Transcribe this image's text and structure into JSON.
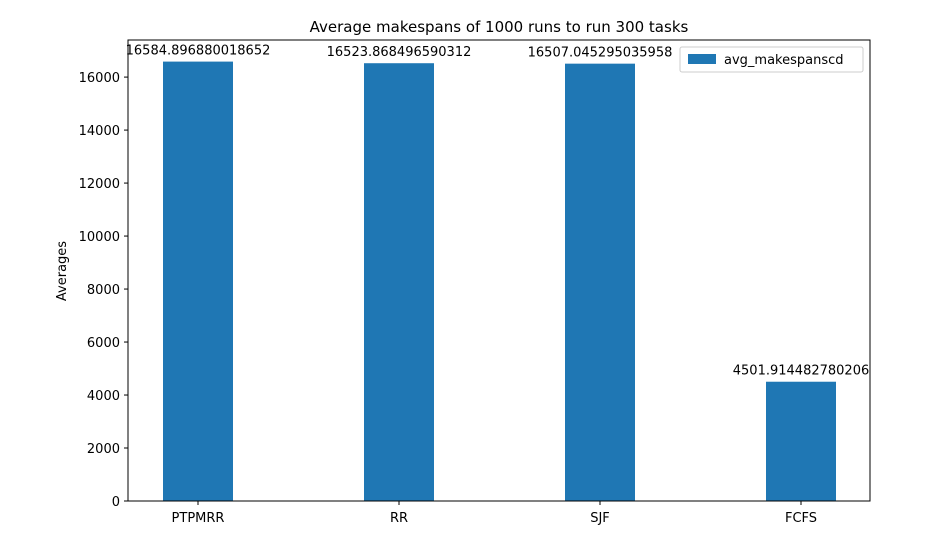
{
  "chart_data": {
    "type": "bar",
    "title": "Average makespans of 1000 runs to run 300 tasks",
    "xlabel": "",
    "ylabel": "Averages",
    "categories": [
      "PTPMRR",
      "RR",
      "SJF",
      "FCFS"
    ],
    "series": [
      {
        "name": "avg_makespanscd",
        "values": [
          16584.896880018652,
          16523.868496590312,
          16507.045295035958,
          4501.914482780206
        ],
        "labels": [
          "16584.896880018652",
          "16523.868496590312",
          "16507.045295035958",
          "4501.914482780206"
        ],
        "color": "#1f77b4"
      }
    ],
    "ylim": [
      0,
      17400
    ],
    "yticks": [
      0,
      2000,
      4000,
      6000,
      8000,
      10000,
      12000,
      14000,
      16000
    ],
    "ytick_labels": [
      "0",
      "2000",
      "4000",
      "6000",
      "8000",
      "10000",
      "12000",
      "14000",
      "16000"
    ],
    "grid": false,
    "legend": "top-right"
  }
}
